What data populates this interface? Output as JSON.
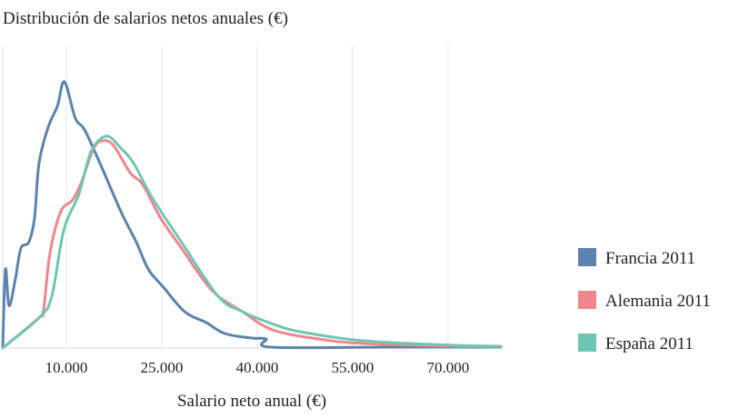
{
  "chart_data": {
    "type": "line",
    "title": "Distribución de salarios netos anuales (€)",
    "xlabel": "Salario neto anual (€)",
    "ylabel": "",
    "xlim": [
      0,
      78300
    ],
    "ylim": [
      0,
      100
    ],
    "x_ticks": [
      10000,
      25000,
      40000,
      55000,
      70000
    ],
    "x_tick_labels": [
      "10.000",
      "25.000",
      "40.000",
      "55.000",
      "70.000"
    ],
    "grid": "vertical",
    "legend_position": "right",
    "series": [
      {
        "name": "Francia 2011",
        "color": "#5b83ad",
        "points": [
          [
            0,
            0
          ],
          [
            430,
            26
          ],
          [
            1000,
            14
          ],
          [
            2000,
            23
          ],
          [
            2860,
            33
          ],
          [
            4100,
            35
          ],
          [
            5000,
            43
          ],
          [
            5700,
            61
          ],
          [
            7150,
            73
          ],
          [
            8600,
            80
          ],
          [
            9700,
            88
          ],
          [
            11400,
            76
          ],
          [
            12900,
            72
          ],
          [
            15300,
            61
          ],
          [
            18600,
            45
          ],
          [
            21000,
            35
          ],
          [
            22900,
            26
          ],
          [
            25300,
            20
          ],
          [
            28600,
            12
          ],
          [
            32000,
            8.4
          ],
          [
            34900,
            4.8
          ],
          [
            39100,
            3.3
          ],
          [
            41400,
            3
          ],
          [
            42100,
            0.3
          ],
          [
            60000,
            0.3
          ],
          [
            78300,
            0.3
          ]
        ]
      },
      {
        "name": "Alemania 2011",
        "color": "#f2868c",
        "points": [
          [
            0,
            0
          ],
          [
            5700,
            10
          ],
          [
            6400,
            12.3
          ],
          [
            7400,
            31
          ],
          [
            9100,
            45
          ],
          [
            11000,
            49
          ],
          [
            12400,
            55
          ],
          [
            14300,
            66
          ],
          [
            15700,
            68.5
          ],
          [
            17400,
            67
          ],
          [
            20000,
            58
          ],
          [
            22000,
            54
          ],
          [
            24800,
            43
          ],
          [
            28100,
            33
          ],
          [
            32900,
            19
          ],
          [
            37700,
            12
          ],
          [
            42400,
            6
          ],
          [
            49600,
            3
          ],
          [
            56700,
            1.5
          ],
          [
            71000,
            0.6
          ],
          [
            78300,
            0.5
          ]
        ]
      },
      {
        "name": "España 2011",
        "color": "#6cc7b2",
        "points": [
          [
            0,
            0
          ],
          [
            5700,
            10
          ],
          [
            7700,
            17
          ],
          [
            9600,
            39
          ],
          [
            12000,
            51
          ],
          [
            13900,
            65
          ],
          [
            16300,
            70
          ],
          [
            18600,
            66
          ],
          [
            20600,
            61
          ],
          [
            23400,
            50
          ],
          [
            28100,
            35
          ],
          [
            33900,
            17
          ],
          [
            37700,
            12
          ],
          [
            42400,
            8
          ],
          [
            46700,
            5.4
          ],
          [
            56700,
            2.4
          ],
          [
            71000,
            0.9
          ],
          [
            78300,
            0.6
          ]
        ]
      }
    ]
  }
}
